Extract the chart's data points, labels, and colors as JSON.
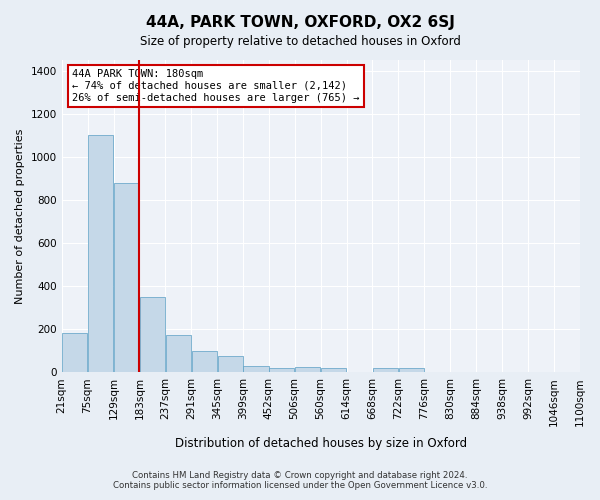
{
  "title": "44A, PARK TOWN, OXFORD, OX2 6SJ",
  "subtitle": "Size of property relative to detached houses in Oxford",
  "xlabel": "Distribution of detached houses by size in Oxford",
  "ylabel": "Number of detached properties",
  "footer_line1": "Contains HM Land Registry data © Crown copyright and database right 2024.",
  "footer_line2": "Contains public sector information licensed under the Open Government Licence v3.0.",
  "annotation_line1": "44A PARK TOWN: 180sqm",
  "annotation_line2": "← 74% of detached houses are smaller (2,142)",
  "annotation_line3": "26% of semi-detached houses are larger (765) →",
  "property_size": 180,
  "bin_edges": [
    21,
    75,
    129,
    183,
    237,
    291,
    345,
    399,
    452,
    506,
    560,
    614,
    668,
    722,
    776,
    830,
    884,
    938,
    992,
    1046,
    1100
  ],
  "bin_labels": [
    "21sqm",
    "75sqm",
    "129sqm",
    "183sqm",
    "237sqm",
    "291sqm",
    "345sqm",
    "399sqm",
    "452sqm",
    "506sqm",
    "560sqm",
    "614sqm",
    "668sqm",
    "722sqm",
    "776sqm",
    "830sqm",
    "884sqm",
    "938sqm",
    "992sqm",
    "1046sqm",
    "1100sqm"
  ],
  "bar_values": [
    185,
    1100,
    880,
    350,
    175,
    100,
    75,
    30,
    20,
    25,
    20,
    0,
    20,
    20,
    0,
    0,
    0,
    0,
    0,
    0
  ],
  "bar_color": "#c5d8e8",
  "bar_edge_color": "#5a9fc4",
  "vline_color": "#cc0000",
  "vline_x": 183,
  "ylim": [
    0,
    1450
  ],
  "yticks": [
    0,
    200,
    400,
    600,
    800,
    1000,
    1200,
    1400
  ],
  "background_color": "#e8eef5",
  "plot_background": "#eef2f8",
  "annotation_box_color": "#ffffff",
  "annotation_box_edge": "#cc0000"
}
